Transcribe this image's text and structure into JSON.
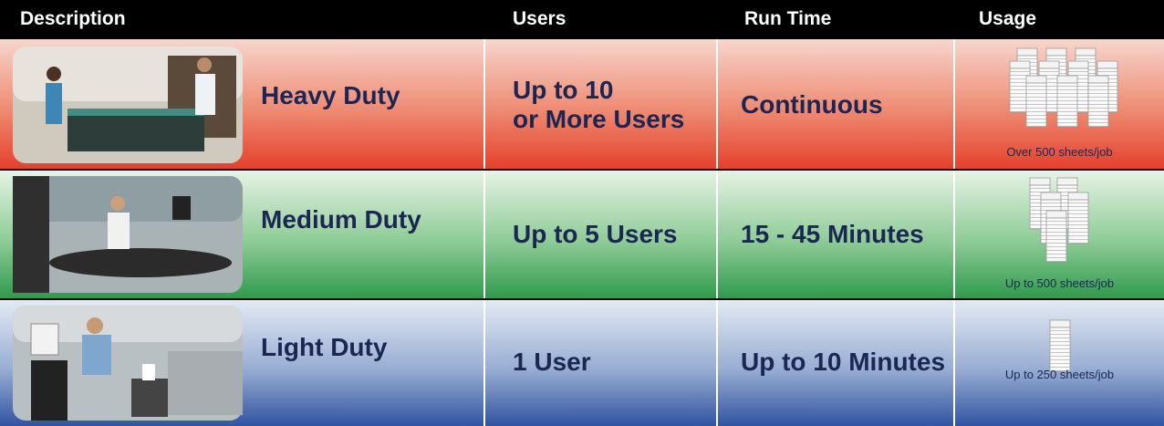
{
  "table": {
    "header": [
      "Description",
      "Users",
      "Run Time",
      "Usage"
    ],
    "rows": [
      {
        "description": "Heavy Duty",
        "users": [
          "Up to 10",
          "or More Users"
        ],
        "run_time": "Continuous",
        "usage": "Over 500 sheets/job"
      },
      {
        "description": "Medium Duty",
        "users": [
          "Up to 5 Users"
        ],
        "run_time": "15 - 45 Minutes",
        "usage": "Up to 500 sheets/job"
      },
      {
        "description": "Light Duty",
        "users": [
          "1 User"
        ],
        "run_time": "Up to 10 Minutes",
        "usage": "Up to 250 sheets/job"
      }
    ]
  }
}
